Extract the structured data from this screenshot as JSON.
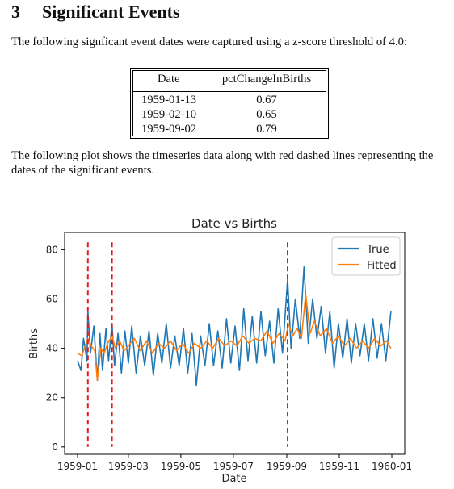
{
  "section": {
    "number": "3",
    "title": "Significant Events",
    "intro": "The following signficant event dates were captured using a z-score threshold of 4.0:",
    "outro": "The following plot shows the timeseries data along with red dashed lines representing the dates of the significant events."
  },
  "table": {
    "headers": [
      "Date",
      "pctChangeInBirths"
    ],
    "rows": [
      [
        "1959-01-13",
        "0.67"
      ],
      [
        "1959-02-10",
        "0.65"
      ],
      [
        "1959-09-02",
        "0.79"
      ]
    ]
  },
  "chart_data": {
    "type": "line",
    "title": "Date vs Births",
    "xlabel": "Date",
    "ylabel": "Births",
    "x_range": [
      "1958-12-17",
      "1960-01-16"
    ],
    "x_ticks": [
      "1959-01",
      "1959-03",
      "1959-05",
      "1959-07",
      "1959-09",
      "1959-11",
      "1960-01"
    ],
    "y_ticks": [
      0,
      20,
      40,
      60,
      80
    ],
    "ylim": [
      -3,
      87
    ],
    "grid": false,
    "legend": "top-right",
    "series": [
      {
        "name": "True",
        "color": "#1f77b4",
        "points": [
          [
            "1959-01-01",
            35
          ],
          [
            "1959-01-05",
            31
          ],
          [
            "1959-01-08",
            44
          ],
          [
            "1959-01-12",
            35
          ],
          [
            "1959-01-13",
            55
          ],
          [
            "1959-01-16",
            38
          ],
          [
            "1959-01-20",
            49
          ],
          [
            "1959-01-24",
            27
          ],
          [
            "1959-01-27",
            46
          ],
          [
            "1959-01-30",
            31
          ],
          [
            "1959-02-03",
            48
          ],
          [
            "1959-02-06",
            35
          ],
          [
            "1959-02-10",
            50
          ],
          [
            "1959-02-13",
            33
          ],
          [
            "1959-02-17",
            46
          ],
          [
            "1959-02-21",
            30
          ],
          [
            "1959-02-25",
            47
          ],
          [
            "1959-03-01",
            34
          ],
          [
            "1959-03-05",
            49
          ],
          [
            "1959-03-10",
            30
          ],
          [
            "1959-03-15",
            45
          ],
          [
            "1959-03-20",
            33
          ],
          [
            "1959-03-25",
            47
          ],
          [
            "1959-03-30",
            29
          ],
          [
            "1959-04-04",
            46
          ],
          [
            "1959-04-09",
            34
          ],
          [
            "1959-04-14",
            50
          ],
          [
            "1959-04-19",
            32
          ],
          [
            "1959-04-24",
            45
          ],
          [
            "1959-04-29",
            33
          ],
          [
            "1959-05-04",
            48
          ],
          [
            "1959-05-09",
            30
          ],
          [
            "1959-05-14",
            46
          ],
          [
            "1959-05-19",
            25
          ],
          [
            "1959-05-24",
            45
          ],
          [
            "1959-05-29",
            33
          ],
          [
            "1959-06-03",
            50
          ],
          [
            "1959-06-08",
            33
          ],
          [
            "1959-06-13",
            47
          ],
          [
            "1959-06-18",
            32
          ],
          [
            "1959-06-23",
            52
          ],
          [
            "1959-06-28",
            34
          ],
          [
            "1959-07-03",
            49
          ],
          [
            "1959-07-08",
            31
          ],
          [
            "1959-07-13",
            56
          ],
          [
            "1959-07-18",
            35
          ],
          [
            "1959-07-23",
            53
          ],
          [
            "1959-07-28",
            34
          ],
          [
            "1959-08-02",
            55
          ],
          [
            "1959-08-07",
            37
          ],
          [
            "1959-08-12",
            51
          ],
          [
            "1959-08-17",
            34
          ],
          [
            "1959-08-22",
            56
          ],
          [
            "1959-08-27",
            38
          ],
          [
            "1959-09-02",
            68
          ],
          [
            "1959-09-06",
            40
          ],
          [
            "1959-09-11",
            60
          ],
          [
            "1959-09-16",
            44
          ],
          [
            "1959-09-21",
            73
          ],
          [
            "1959-09-26",
            42
          ],
          [
            "1959-10-01",
            60
          ],
          [
            "1959-10-06",
            44
          ],
          [
            "1959-10-11",
            57
          ],
          [
            "1959-10-16",
            38
          ],
          [
            "1959-10-21",
            55
          ],
          [
            "1959-10-26",
            32
          ],
          [
            "1959-10-31",
            50
          ],
          [
            "1959-11-05",
            36
          ],
          [
            "1959-11-10",
            52
          ],
          [
            "1959-11-15",
            34
          ],
          [
            "1959-11-20",
            50
          ],
          [
            "1959-11-25",
            37
          ],
          [
            "1959-11-30",
            50
          ],
          [
            "1959-12-05",
            35
          ],
          [
            "1959-12-10",
            52
          ],
          [
            "1959-12-15",
            36
          ],
          [
            "1959-12-20",
            50
          ],
          [
            "1959-12-25",
            35
          ],
          [
            "1959-12-31",
            55
          ]
        ]
      },
      {
        "name": "Fitted",
        "color": "#ff7f0e",
        "points": [
          [
            "1959-01-01",
            38
          ],
          [
            "1959-01-06",
            37
          ],
          [
            "1959-01-10",
            41
          ],
          [
            "1959-01-13",
            44
          ],
          [
            "1959-01-17",
            41
          ],
          [
            "1959-01-21",
            39
          ],
          [
            "1959-01-24",
            27
          ],
          [
            "1959-01-28",
            40
          ],
          [
            "1959-02-01",
            38
          ],
          [
            "1959-02-05",
            42
          ],
          [
            "1959-02-10",
            45
          ],
          [
            "1959-02-14",
            40
          ],
          [
            "1959-02-19",
            43
          ],
          [
            "1959-02-24",
            39
          ],
          [
            "1959-03-01",
            41
          ],
          [
            "1959-03-08",
            44
          ],
          [
            "1959-03-15",
            39
          ],
          [
            "1959-03-22",
            43
          ],
          [
            "1959-03-29",
            38
          ],
          [
            "1959-04-05",
            42
          ],
          [
            "1959-04-12",
            40
          ],
          [
            "1959-04-19",
            43
          ],
          [
            "1959-04-26",
            39
          ],
          [
            "1959-05-03",
            42
          ],
          [
            "1959-05-10",
            38
          ],
          [
            "1959-05-17",
            42
          ],
          [
            "1959-05-24",
            40
          ],
          [
            "1959-05-31",
            43
          ],
          [
            "1959-06-07",
            40
          ],
          [
            "1959-06-14",
            44
          ],
          [
            "1959-06-21",
            41
          ],
          [
            "1959-06-28",
            43
          ],
          [
            "1959-07-05",
            41
          ],
          [
            "1959-07-12",
            45
          ],
          [
            "1959-07-19",
            42
          ],
          [
            "1959-07-26",
            44
          ],
          [
            "1959-08-02",
            43
          ],
          [
            "1959-08-09",
            47
          ],
          [
            "1959-08-16",
            42
          ],
          [
            "1959-08-23",
            46
          ],
          [
            "1959-08-30",
            43
          ],
          [
            "1959-09-03",
            50
          ],
          [
            "1959-09-08",
            45
          ],
          [
            "1959-09-13",
            48
          ],
          [
            "1959-09-18",
            44
          ],
          [
            "1959-09-23",
            62
          ],
          [
            "1959-09-28",
            46
          ],
          [
            "1959-10-03",
            51
          ],
          [
            "1959-10-10",
            45
          ],
          [
            "1959-10-17",
            48
          ],
          [
            "1959-10-24",
            42
          ],
          [
            "1959-10-31",
            45
          ],
          [
            "1959-11-07",
            41
          ],
          [
            "1959-11-14",
            44
          ],
          [
            "1959-11-21",
            40
          ],
          [
            "1959-11-28",
            43
          ],
          [
            "1959-12-05",
            40
          ],
          [
            "1959-12-12",
            44
          ],
          [
            "1959-12-19",
            41
          ],
          [
            "1959-12-26",
            43
          ],
          [
            "1959-12-31",
            40
          ]
        ]
      }
    ],
    "event_lines": {
      "color": "#e41a1c",
      "style": "dashed",
      "dates": [
        "1959-01-13",
        "1959-02-10",
        "1959-09-02"
      ]
    }
  }
}
